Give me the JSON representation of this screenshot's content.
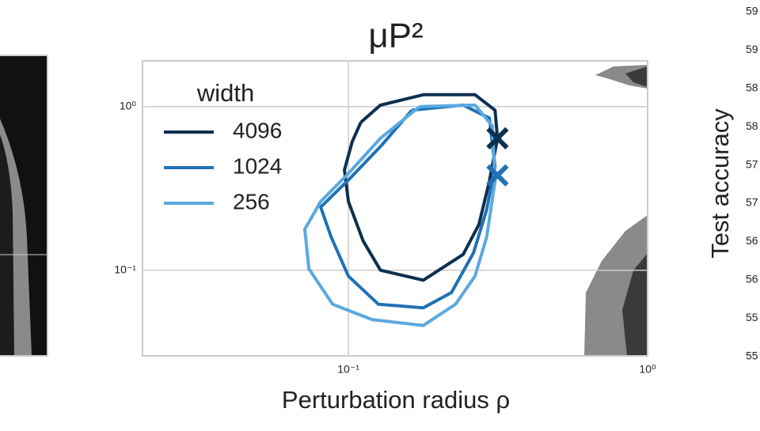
{
  "chart_data": {
    "type": "line",
    "title": "μP²",
    "xlabel": "Perturbation radius ρ",
    "legend_title": "width",
    "legend": "upper left",
    "grid": true,
    "xscale": "log",
    "yscale": "log",
    "xlim": [
      0.0205,
      1
    ],
    "ylim": [
      0.03,
      1.9
    ],
    "xticks": [
      {
        "value": 0.1,
        "label": "10⁻¹"
      },
      {
        "value": 1,
        "label": "10⁰"
      }
    ],
    "yticks": [
      {
        "value": 0.1,
        "label": "10⁻¹"
      },
      {
        "value": 1,
        "label": "10⁰"
      }
    ],
    "series": [
      {
        "name": "4096",
        "color": "#0d2f4f",
        "x": [
          0.11,
          0.128,
          0.178,
          0.265,
          0.309,
          0.315,
          0.296,
          0.273,
          0.242,
          0.178,
          0.128,
          0.112,
          0.1,
          0.097,
          0.103,
          0.11
        ],
        "values": [
          0.8,
          1.02,
          1.18,
          1.18,
          0.95,
          0.64,
          0.35,
          0.19,
          0.125,
          0.087,
          0.1,
          0.151,
          0.263,
          0.41,
          0.61,
          0.8
        ],
        "best": {
          "x": 0.315,
          "y": 0.64
        }
      },
      {
        "name": "1024",
        "color": "#2171b5",
        "x": [
          0.163,
          0.242,
          0.296,
          0.309,
          0.29,
          0.262,
          0.221,
          0.178,
          0.126,
          0.1,
          0.0875,
          0.0808,
          0.1,
          0.128,
          0.163
        ],
        "values": [
          0.95,
          1.02,
          0.85,
          0.43,
          0.235,
          0.128,
          0.073,
          0.059,
          0.062,
          0.092,
          0.16,
          0.243,
          0.356,
          0.57,
          0.95
        ],
        "best": {
          "x": 0.315,
          "y": 0.38
        }
      },
      {
        "name": "256",
        "color": "#5aa9e0",
        "x": [
          0.173,
          0.265,
          0.303,
          0.309,
          0.29,
          0.265,
          0.228,
          0.178,
          0.12,
          0.0886,
          0.0738,
          0.0715,
          0.0808,
          0.1,
          0.128,
          0.173
        ],
        "values": [
          1.0,
          1.02,
          0.76,
          0.35,
          0.16,
          0.092,
          0.062,
          0.046,
          0.05,
          0.062,
          0.102,
          0.178,
          0.263,
          0.39,
          0.64,
          1.0
        ]
      }
    ]
  },
  "colorbar": {
    "label": "Test accuracy",
    "tick_labels": [
      "59",
      "59",
      "58",
      "58",
      "57",
      "57",
      "56",
      "56",
      "55",
      "55"
    ]
  }
}
